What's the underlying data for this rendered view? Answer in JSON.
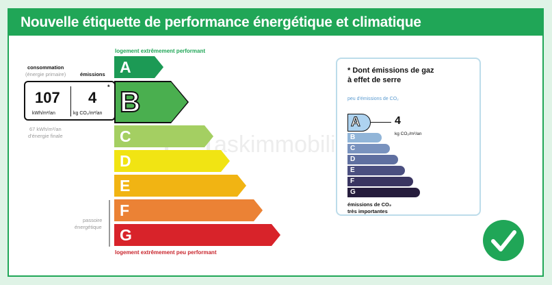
{
  "title": "Nouvelle étiquette de performance énergétique et climatique",
  "dpe": {
    "label_top": "logement extrêmement performant",
    "label_bottom": "logement extrêmement peu performant",
    "classes": [
      {
        "letter": "A",
        "color": "#1c9a55"
      },
      {
        "letter": "B",
        "color": "#4aaf4f"
      },
      {
        "letter": "C",
        "color": "#a4cf62"
      },
      {
        "letter": "D",
        "color": "#f1e413"
      },
      {
        "letter": "E",
        "color": "#f1b413"
      },
      {
        "letter": "F",
        "color": "#eb8235"
      },
      {
        "letter": "G",
        "color": "#d8232a"
      }
    ],
    "current_class": "B",
    "header_consommation": "consommation",
    "header_energie_primaire": "(énergie primaire)",
    "header_emissions": "émissions",
    "consommation_value": "107",
    "consommation_unit": "kWh/m²/an",
    "emissions_value": "4",
    "emissions_unit": "kg CO₂/m²/an",
    "emissions_asterisk": "*",
    "final_energy_line1": "67 kWh/m²/an",
    "final_energy_line2": "d'énergie finale",
    "passoire_line1": "passoire",
    "passoire_line2": "énergétique"
  },
  "ges": {
    "title_line1": "* Dont émissions de gaz",
    "title_line2": "à effet de serre",
    "subtitle": "peu d'émissions de CO₂",
    "current_class": "A",
    "value": "4",
    "unit": "kg CO₂/m²/an",
    "classes": [
      {
        "letter": "A",
        "color": "#aed3f0"
      },
      {
        "letter": "B",
        "color": "#91b5d8"
      },
      {
        "letter": "C",
        "color": "#7992be"
      },
      {
        "letter": "D",
        "color": "#5f6fa0"
      },
      {
        "letter": "E",
        "color": "#4b4f80"
      },
      {
        "letter": "F",
        "color": "#3a3561"
      },
      {
        "letter": "G",
        "color": "#261d3d"
      }
    ],
    "footer_line1": "émissions de CO₂",
    "footer_line2": "très importantes"
  },
  "watermark": "askimmobilier",
  "status_icon": "checkmark-icon"
}
